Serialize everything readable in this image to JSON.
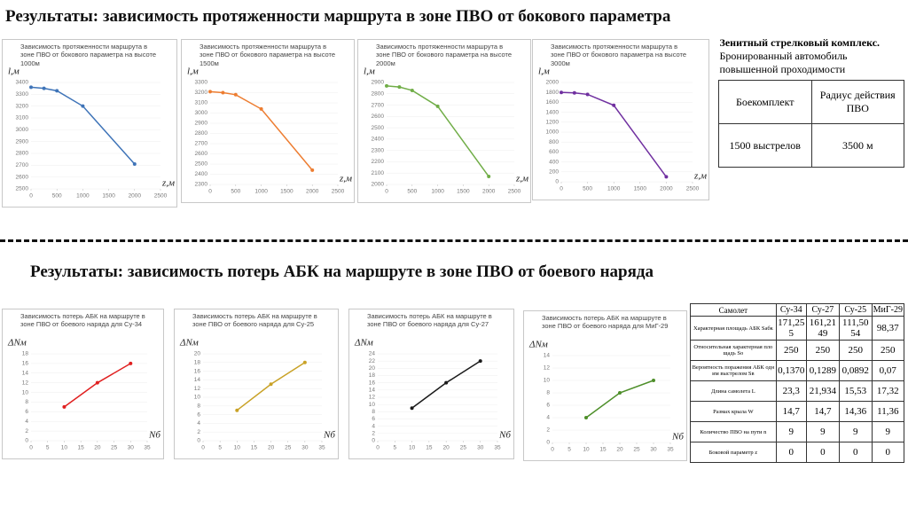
{
  "title1": "Результаты: зависимость  протяженности маршрута в зоне ПВО от бокового параметра",
  "title2": "Результаты: зависимость  потерь АБК на маршруте в зоне ПВО от боевого наряда",
  "chart_data": [
    {
      "type": "line",
      "title": "Зависимость протяженности маршрута в зоне ПВО от бокового параметра на высоте 1000м",
      "ylabel": "l,м",
      "xlabel": "z,м",
      "color": "#3f74b8",
      "x": [
        0,
        250,
        500,
        1000,
        2000
      ],
      "values": [
        3360,
        3350,
        3330,
        3200,
        2710
      ],
      "xlim": [
        0,
        2500
      ],
      "xticks": [
        0,
        500,
        1000,
        1500,
        2000,
        2500
      ],
      "ylim": [
        2500,
        3400
      ],
      "yticks": [
        2500,
        2600,
        2700,
        2800,
        2900,
        3000,
        3100,
        3200,
        3300,
        3400
      ]
    },
    {
      "type": "line",
      "title": "Зависимость протяженности маршрута в зоне ПВО от бокового параметра на высоте 1500м",
      "ylabel": "l,м",
      "xlabel": "z,м",
      "color": "#ed7d31",
      "x": [
        0,
        250,
        500,
        1000,
        2000
      ],
      "values": [
        3210,
        3200,
        3180,
        3040,
        2440
      ],
      "xlim": [
        0,
        2500
      ],
      "xticks": [
        0,
        500,
        1000,
        1500,
        2000,
        2500
      ],
      "ylim": [
        2300,
        3300
      ],
      "yticks": [
        2300,
        2400,
        2500,
        2600,
        2700,
        2800,
        2900,
        3000,
        3100,
        3200,
        3300
      ]
    },
    {
      "type": "line",
      "title": "Зависимость протяженности маршрута в зоне ПВО от бокового параметра на высоте 2000м",
      "ylabel": "l,м",
      "xlabel": "z,м",
      "color": "#70ad47",
      "x": [
        0,
        250,
        500,
        1000,
        2000
      ],
      "values": [
        2870,
        2860,
        2830,
        2690,
        2070
      ],
      "xlim": [
        0,
        2500
      ],
      "xticks": [
        0,
        500,
        1000,
        1500,
        2000,
        2500
      ],
      "ylim": [
        2000,
        2900
      ],
      "yticks": [
        2000,
        2100,
        2200,
        2300,
        2400,
        2500,
        2600,
        2700,
        2800,
        2900
      ]
    },
    {
      "type": "line",
      "title": "Зависимость протяженности маршрута в зоне ПВО от бокового параметра на высоте 3000м",
      "ylabel": "l,м",
      "xlabel": "z,м",
      "color": "#7030a0",
      "x": [
        0,
        250,
        500,
        1000,
        2000
      ],
      "values": [
        1800,
        1790,
        1760,
        1540,
        100
      ],
      "xlim": [
        0,
        2500
      ],
      "xticks": [
        0,
        500,
        1000,
        1500,
        2000,
        2500
      ],
      "ylim": [
        0,
        2000
      ],
      "yticks": [
        0,
        200,
        400,
        600,
        800,
        1000,
        1200,
        1400,
        1600,
        1800,
        2000
      ]
    },
    {
      "type": "line",
      "title": "Зависимость потерь АБК на маршруте в зоне ПВО от боевого наряда для Су-34",
      "ylabel": "ΔNм",
      "xlabel": "Nб",
      "color": "#e02020",
      "x": [
        10,
        20,
        30
      ],
      "values": [
        7,
        12,
        16
      ],
      "xlim": [
        0,
        35
      ],
      "xticks": [
        0,
        5,
        10,
        15,
        20,
        25,
        30,
        35
      ],
      "ylim": [
        0,
        18
      ],
      "yticks": [
        0,
        2,
        4,
        6,
        8,
        10,
        12,
        14,
        16,
        18
      ]
    },
    {
      "type": "line",
      "title": "Зависимость потерь АБК на маршруте в зоне ПВО от боевого наряда для Су-25",
      "ylabel": "ΔNм",
      "xlabel": "Nб",
      "color": "#c9a227",
      "x": [
        10,
        20,
        30
      ],
      "values": [
        7,
        13,
        18
      ],
      "xlim": [
        0,
        35
      ],
      "xticks": [
        0,
        5,
        10,
        15,
        20,
        25,
        30,
        35
      ],
      "ylim": [
        0,
        20
      ],
      "yticks": [
        0,
        2,
        4,
        6,
        8,
        10,
        12,
        14,
        16,
        18,
        20
      ]
    },
    {
      "type": "line",
      "title": "Зависимость потерь АБК на маршруте в зоне ПВО от боевого наряда для Су-27",
      "ylabel": "ΔNм",
      "xlabel": "Nб",
      "color": "#1a1a1a",
      "x": [
        10,
        20,
        30
      ],
      "values": [
        9,
        16,
        22
      ],
      "xlim": [
        0,
        35
      ],
      "xticks": [
        0,
        5,
        10,
        15,
        20,
        25,
        30,
        35
      ],
      "ylim": [
        0,
        24
      ],
      "yticks": [
        0,
        2,
        4,
        6,
        8,
        10,
        12,
        14,
        16,
        18,
        20,
        22,
        24
      ]
    },
    {
      "type": "line",
      "title": "Зависимость потерь АБК на маршруте в зоне ПВО от боевого наряда для МиГ-29",
      "ylabel": "ΔNм",
      "xlabel": "Nб",
      "color": "#4e8f2a",
      "x": [
        10,
        20,
        30
      ],
      "values": [
        4,
        8,
        10
      ],
      "xlim": [
        0,
        35
      ],
      "xticks": [
        0,
        5,
        10,
        15,
        20,
        25,
        30,
        35
      ],
      "ylim": [
        0,
        14
      ],
      "yticks": [
        0,
        2,
        4,
        6,
        8,
        10,
        12,
        14
      ]
    }
  ],
  "table1": {
    "caption_bold": "Зенитный стрелковый комплекс.",
    "caption": "Бронированный автомобиль повышенной проходимости",
    "rows": [
      [
        "Боекомплект",
        "Радиус действия ПВО"
      ],
      [
        "1500 выстрелов",
        "3500 м"
      ]
    ]
  },
  "table2": {
    "header": [
      "Самолет",
      "Су-34",
      "Су-27",
      "Су-25",
      "МиГ-29"
    ],
    "rows": [
      [
        "Характерная площадь АБК Sабк",
        "171,255",
        "161,2149",
        "111,5054",
        "98,37"
      ],
      [
        "Относительная характерная площадь So",
        "250",
        "250",
        "250",
        "250"
      ],
      [
        "Вероятность поражения АБК одним выстрелом Sв",
        "0,1370",
        "0,1289",
        "0,0892",
        "0,07"
      ],
      [
        "Длина самолета L",
        "23,3",
        "21,934",
        "15,53",
        "17,32"
      ],
      [
        "Размах крыла W",
        "14,7",
        "14,7",
        "14,36",
        "11,36"
      ],
      [
        "Количество ПВО на пути n",
        "9",
        "9",
        "9",
        "9"
      ],
      [
        "Боковой параметр z",
        "0",
        "0",
        "0",
        "0"
      ]
    ]
  }
}
